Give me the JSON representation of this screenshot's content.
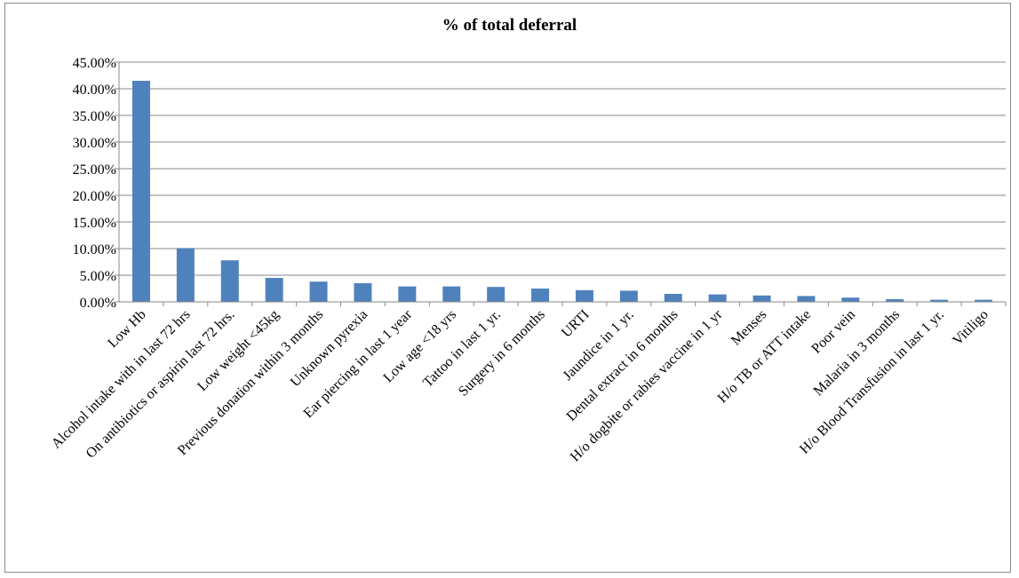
{
  "chart_data": {
    "type": "bar",
    "title": "% of total deferral",
    "xlabel": "",
    "ylabel": "",
    "ylim": [
      0,
      45
    ],
    "y_ticks": [
      "0.00%",
      "5.00%",
      "10.00%",
      "15.00%",
      "20.00%",
      "25.00%",
      "30.00%",
      "35.00%",
      "40.00%",
      "45.00%"
    ],
    "grid": "horizontal",
    "legend": "none",
    "bar_color": "#4F81BD",
    "categories": [
      "Low Hb",
      "Alcohol intake with in last 72 hrs",
      "On antibiotics  or aspirin last 72 hrs.",
      "Low weight <45kg",
      "Previous donation within 3 months",
      "Unknown pyrexia",
      "Ear piercing in last 1 year",
      "Low age <18 yrs",
      "Tattoo in last 1 yr.",
      "Surgery in 6 months",
      "URTI",
      "Jaundice in 1 yr.",
      "Dental extract in 6 months",
      "H/o dogbite or rabies vaccine in 1 yr",
      "Menses",
      "H/o TB or ATT intake",
      "Poor vein",
      "Malaria in 3 months",
      "H/o Blood Transfusion in last 1 yr.",
      "Vitiligo"
    ],
    "values": [
      41.5,
      10.1,
      7.8,
      4.5,
      3.8,
      3.5,
      2.9,
      2.9,
      2.8,
      2.5,
      2.2,
      2.1,
      1.5,
      1.4,
      1.2,
      1.1,
      0.8,
      0.5,
      0.4,
      0.4
    ]
  }
}
